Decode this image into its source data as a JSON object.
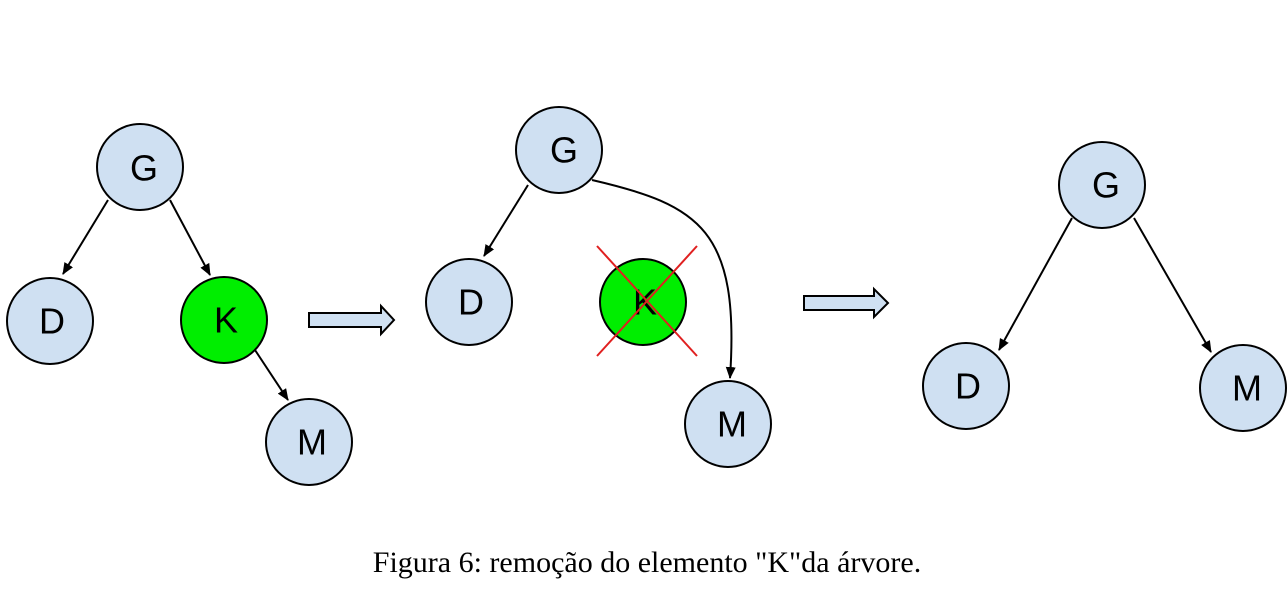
{
  "caption": "Figura 6: remoção do elemento \"K\"da árvore.",
  "colors": {
    "node_fill": "#cfe0f2",
    "highlight_fill": "#00ee00",
    "cross": "#e02020",
    "arrow_fill": "#cfe0f2"
  },
  "panels": [
    {
      "name": "before-removal",
      "nodes": {
        "G": "G",
        "D": "D",
        "K": "K",
        "M": "M"
      }
    },
    {
      "name": "during-removal",
      "nodes": {
        "G": "G",
        "D": "D",
        "K": "K",
        "M": "M"
      },
      "removed_node": "K"
    },
    {
      "name": "after-removal",
      "nodes": {
        "G": "G",
        "D": "D",
        "M": "M"
      }
    }
  ]
}
